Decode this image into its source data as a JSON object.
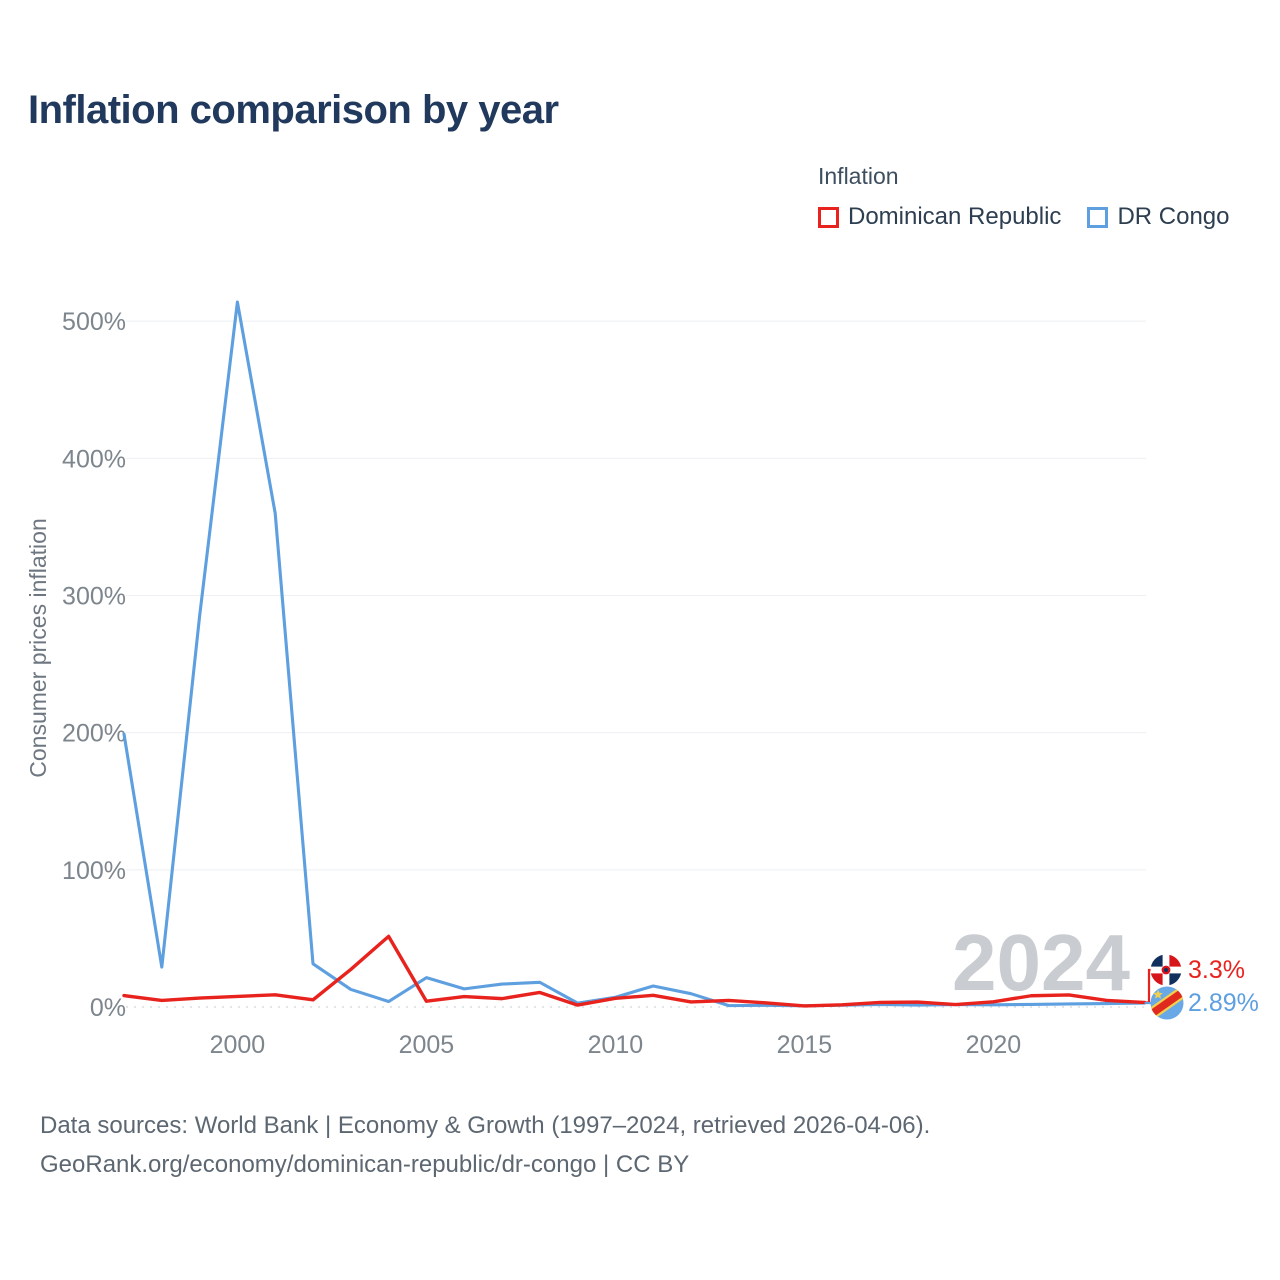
{
  "title": "Inflation comparison by year",
  "legend": {
    "title": "Inflation",
    "items": [
      {
        "label": "Dominican Republic",
        "color": "#e8231d"
      },
      {
        "label": "DR Congo",
        "color": "#5e9fe0"
      }
    ]
  },
  "chart_data": {
    "type": "line",
    "title": "Inflation comparison by year",
    "ylabel": "Consumer prices inflation",
    "xlabel": "",
    "xlim": [
      1997,
      2024
    ],
    "ylim": [
      0,
      530
    ],
    "grid": true,
    "legend_position": "top-right",
    "watermark": "2024",
    "x": [
      1997,
      1998,
      1999,
      2000,
      2001,
      2002,
      2003,
      2004,
      2005,
      2006,
      2007,
      2008,
      2009,
      2010,
      2011,
      2012,
      2013,
      2014,
      2015,
      2016,
      2017,
      2018,
      2019,
      2020,
      2021,
      2022,
      2023,
      2024
    ],
    "series": [
      {
        "name": "Dominican Republic",
        "color": "#e8231d",
        "values": [
          8.3,
          4.8,
          6.5,
          7.7,
          8.9,
          5.2,
          27.4,
          51.5,
          4.2,
          7.6,
          6.1,
          10.6,
          1.4,
          6.3,
          8.5,
          3.7,
          4.8,
          3.0,
          0.8,
          1.6,
          3.3,
          3.6,
          1.8,
          3.8,
          8.2,
          8.8,
          4.8,
          3.3
        ]
      },
      {
        "name": "DR Congo",
        "color": "#5e9fe0",
        "values": [
          199.0,
          29.1,
          284.9,
          513.9,
          359.9,
          31.5,
          12.8,
          4.0,
          21.4,
          13.2,
          16.7,
          18.0,
          2.8,
          7.1,
          15.3,
          9.7,
          1.0,
          1.2,
          0.9,
          1.3,
          1.9,
          1.4,
          1.8,
          1.6,
          1.9,
          2.2,
          2.5,
          2.89
        ]
      }
    ],
    "yticks": [
      {
        "value": 0,
        "label": "0%"
      },
      {
        "value": 100,
        "label": "100%"
      },
      {
        "value": 200,
        "label": "200%"
      },
      {
        "value": 300,
        "label": "300%"
      },
      {
        "value": 400,
        "label": "400%"
      },
      {
        "value": 500,
        "label": "500%"
      }
    ],
    "xticks": [
      2000,
      2005,
      2010,
      2015,
      2020
    ],
    "end_labels": [
      {
        "series": "Dominican Republic",
        "text": "3.3%",
        "icon": "dominican-republic-flag-icon"
      },
      {
        "series": "DR Congo",
        "text": "2.89%",
        "icon": "dr-congo-flag-icon"
      }
    ]
  },
  "colors": {
    "title_text": "#20395c",
    "axis_text": "#7d858d",
    "axis_title_text": "#6e7781",
    "gridline": "#edeff2",
    "zero_line": "#d9dde1",
    "watermark": "#c9ccd0",
    "footer_text": "#5d6771",
    "series_red": "#e8231d",
    "series_blue": "#5e9fe0"
  },
  "footer": {
    "line1": "Data sources: World Bank | Economy & Growth (1997–2024, retrieved 2026-04-06).",
    "line2": "GeoRank.org/economy/dominican-republic/dr-congo | CC BY"
  }
}
